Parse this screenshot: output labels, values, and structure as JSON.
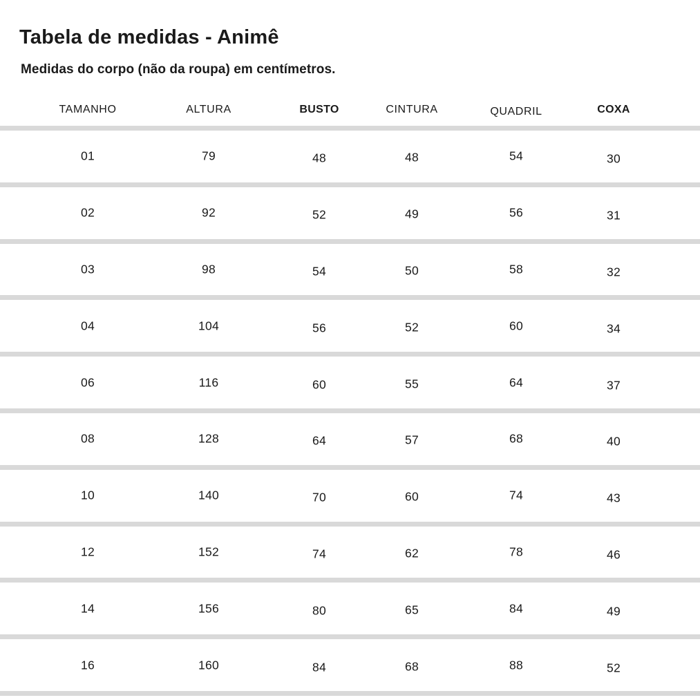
{
  "title": "Tabela de medidas - Animê",
  "subtitle": "Medidas do corpo (não da roupa) em centímetros.",
  "chart_data": {
    "type": "table",
    "title": "Tabela de medidas - Animê",
    "subtitle": "Medidas do corpo (não da roupa) em centímetros.",
    "columns": [
      "TAMANHO",
      "ALTURA",
      "BUSTO",
      "CINTURA",
      "QUADRIL",
      "COXA"
    ],
    "bold_columns": [
      "BUSTO",
      "COXA"
    ],
    "rows": [
      [
        "01",
        "79",
        "48",
        "48",
        "54",
        "30"
      ],
      [
        "02",
        "92",
        "52",
        "49",
        "56",
        "31"
      ],
      [
        "03",
        "98",
        "54",
        "50",
        "58",
        "32"
      ],
      [
        "04",
        "104",
        "56",
        "52",
        "60",
        "34"
      ],
      [
        "06",
        "116",
        "60",
        "55",
        "64",
        "37"
      ],
      [
        "08",
        "128",
        "64",
        "57",
        "68",
        "40"
      ],
      [
        "10",
        "140",
        "70",
        "60",
        "74",
        "43"
      ],
      [
        "12",
        "152",
        "74",
        "62",
        "78",
        "46"
      ],
      [
        "14",
        "156",
        "80",
        "65",
        "84",
        "49"
      ],
      [
        "16",
        "160",
        "84",
        "68",
        "88",
        "52"
      ]
    ]
  },
  "colors": {
    "background": "#ffffff",
    "text": "#1a1a1a",
    "divider": "#d9d9d9"
  }
}
